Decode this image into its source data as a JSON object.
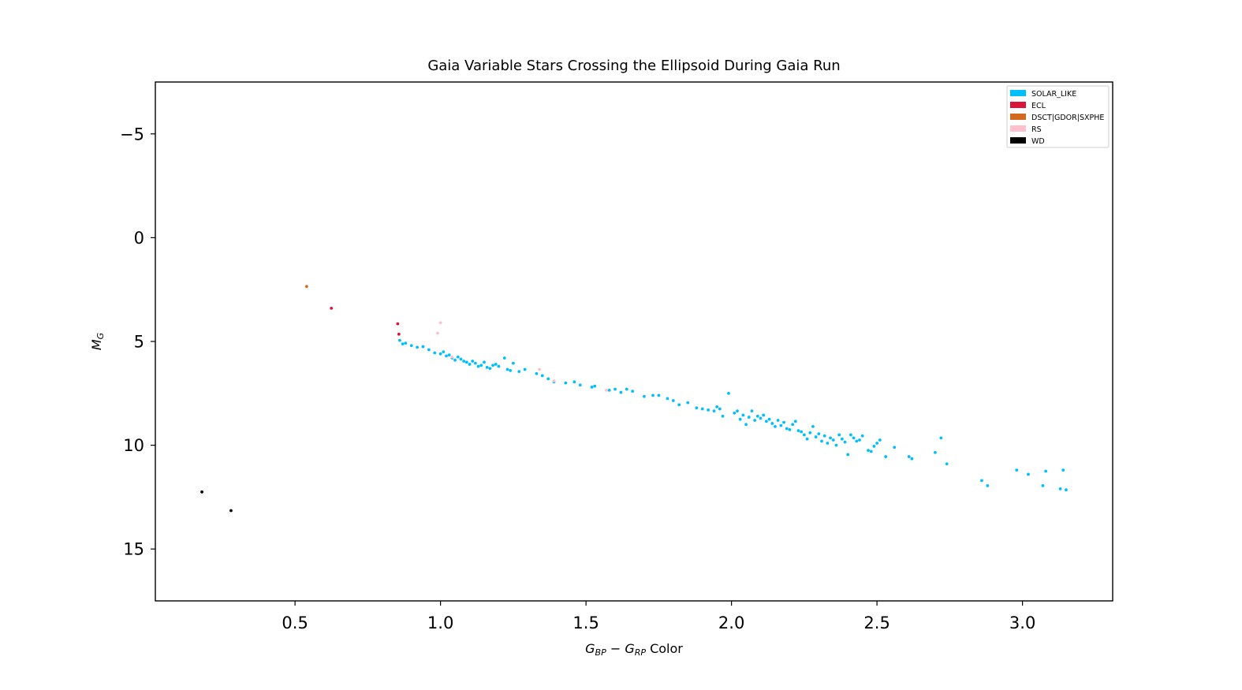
{
  "chart_data": {
    "type": "scatter",
    "title": "Gaia Variable Stars Crossing the Ellipsoid During Gaia Run",
    "xlabel": {
      "main_1": "G",
      "sub_1": "BP",
      "op": " − ",
      "main_2": "G",
      "sub_2": "RP",
      "suffix": " Color"
    },
    "ylabel": {
      "main": "M",
      "sub": "G"
    },
    "xlim": [
      0.02,
      3.31
    ],
    "ylim": [
      17.5,
      -7.5
    ],
    "y_inverted": true,
    "x_ticks": [
      0.5,
      1.0,
      1.5,
      2.0,
      2.5,
      3.0
    ],
    "x_tick_labels": [
      "0.5",
      "1.0",
      "1.5",
      "2.0",
      "2.5",
      "3.0"
    ],
    "y_ticks": [
      -5,
      0,
      5,
      10,
      15
    ],
    "y_tick_labels": [
      "−5",
      "0",
      "5",
      "10",
      "15"
    ],
    "grid": false,
    "legend_position": "top-right",
    "series": [
      {
        "name": "SOLAR_LIKE",
        "color": "#00BFFF",
        "points": [
          [
            0.86,
            4.95
          ],
          [
            0.87,
            5.12
          ],
          [
            0.88,
            5.08
          ],
          [
            0.9,
            5.2
          ],
          [
            0.92,
            5.28
          ],
          [
            0.94,
            5.25
          ],
          [
            0.96,
            5.4
          ],
          [
            0.98,
            5.55
          ],
          [
            1.0,
            5.6
          ],
          [
            1.01,
            5.5
          ],
          [
            1.02,
            5.7
          ],
          [
            1.03,
            5.65
          ],
          [
            1.04,
            5.8
          ],
          [
            1.05,
            5.9
          ],
          [
            1.06,
            5.75
          ],
          [
            1.07,
            5.85
          ],
          [
            1.08,
            5.95
          ],
          [
            1.09,
            6.0
          ],
          [
            1.1,
            6.1
          ],
          [
            1.11,
            5.95
          ],
          [
            1.12,
            6.05
          ],
          [
            1.13,
            6.2
          ],
          [
            1.14,
            6.15
          ],
          [
            1.15,
            6.0
          ],
          [
            1.16,
            6.25
          ],
          [
            1.17,
            6.3
          ],
          [
            1.18,
            6.15
          ],
          [
            1.19,
            6.1
          ],
          [
            1.2,
            6.2
          ],
          [
            1.22,
            5.8
          ],
          [
            1.23,
            6.35
          ],
          [
            1.24,
            6.4
          ],
          [
            1.25,
            6.05
          ],
          [
            1.27,
            6.45
          ],
          [
            1.29,
            6.35
          ],
          [
            1.33,
            6.55
          ],
          [
            1.35,
            6.65
          ],
          [
            1.37,
            6.8
          ],
          [
            1.39,
            6.95
          ],
          [
            1.43,
            7.0
          ],
          [
            1.46,
            6.95
          ],
          [
            1.48,
            7.1
          ],
          [
            1.52,
            7.2
          ],
          [
            1.53,
            7.15
          ],
          [
            1.58,
            7.35
          ],
          [
            1.6,
            7.3
          ],
          [
            1.62,
            7.45
          ],
          [
            1.64,
            7.3
          ],
          [
            1.66,
            7.4
          ],
          [
            1.7,
            7.65
          ],
          [
            1.73,
            7.6
          ],
          [
            1.75,
            7.6
          ],
          [
            1.78,
            7.75
          ],
          [
            1.8,
            7.85
          ],
          [
            1.82,
            8.05
          ],
          [
            1.85,
            7.95
          ],
          [
            1.88,
            8.2
          ],
          [
            1.9,
            8.25
          ],
          [
            1.92,
            8.3
          ],
          [
            1.94,
            8.35
          ],
          [
            1.95,
            8.15
          ],
          [
            1.96,
            8.25
          ],
          [
            1.97,
            8.6
          ],
          [
            1.99,
            7.5
          ],
          [
            2.01,
            8.45
          ],
          [
            2.02,
            8.35
          ],
          [
            2.03,
            8.75
          ],
          [
            2.04,
            8.55
          ],
          [
            2.05,
            9.0
          ],
          [
            2.06,
            8.65
          ],
          [
            2.07,
            8.35
          ],
          [
            2.08,
            8.8
          ],
          [
            2.09,
            8.6
          ],
          [
            2.1,
            8.7
          ],
          [
            2.11,
            8.55
          ],
          [
            2.12,
            8.85
          ],
          [
            2.13,
            8.75
          ],
          [
            2.14,
            8.95
          ],
          [
            2.15,
            9.1
          ],
          [
            2.16,
            8.8
          ],
          [
            2.17,
            9.05
          ],
          [
            2.18,
            8.9
          ],
          [
            2.19,
            9.2
          ],
          [
            2.2,
            9.25
          ],
          [
            2.21,
            9.0
          ],
          [
            2.22,
            8.85
          ],
          [
            2.23,
            9.3
          ],
          [
            2.24,
            9.35
          ],
          [
            2.25,
            9.5
          ],
          [
            2.26,
            9.7
          ],
          [
            2.27,
            9.4
          ],
          [
            2.28,
            9.1
          ],
          [
            2.29,
            9.6
          ],
          [
            2.3,
            9.45
          ],
          [
            2.31,
            9.8
          ],
          [
            2.32,
            9.55
          ],
          [
            2.33,
            9.9
          ],
          [
            2.34,
            9.65
          ],
          [
            2.35,
            9.75
          ],
          [
            2.36,
            10.0
          ],
          [
            2.37,
            9.5
          ],
          [
            2.38,
            9.7
          ],
          [
            2.39,
            9.85
          ],
          [
            2.4,
            10.45
          ],
          [
            2.41,
            9.5
          ],
          [
            2.42,
            9.65
          ],
          [
            2.43,
            9.8
          ],
          [
            2.44,
            9.75
          ],
          [
            2.45,
            9.55
          ],
          [
            2.47,
            10.25
          ],
          [
            2.48,
            10.3
          ],
          [
            2.49,
            10.05
          ],
          [
            2.5,
            9.9
          ],
          [
            2.51,
            9.75
          ],
          [
            2.53,
            10.55
          ],
          [
            2.56,
            10.1
          ],
          [
            2.61,
            10.55
          ],
          [
            2.62,
            10.65
          ],
          [
            2.7,
            10.35
          ],
          [
            2.72,
            9.65
          ],
          [
            2.74,
            10.9
          ],
          [
            2.86,
            11.7
          ],
          [
            2.88,
            11.95
          ],
          [
            2.98,
            11.2
          ],
          [
            3.02,
            11.4
          ],
          [
            3.07,
            11.95
          ],
          [
            3.08,
            11.25
          ],
          [
            3.13,
            12.1
          ],
          [
            3.14,
            11.2
          ],
          [
            3.15,
            12.15
          ]
        ]
      },
      {
        "name": "ECL",
        "color": "#DC143C",
        "points": [
          [
            0.625,
            3.4
          ],
          [
            0.853,
            4.15
          ],
          [
            0.857,
            4.65
          ]
        ]
      },
      {
        "name": "DSCT|GDOR|SXPHE",
        "color": "#D2691E",
        "points": [
          [
            0.54,
            2.35
          ]
        ]
      },
      {
        "name": "RS",
        "color": "#FFC0CB",
        "points": [
          [
            0.99,
            4.6
          ],
          [
            1.0,
            4.1
          ],
          [
            1.34,
            6.35
          ],
          [
            1.39,
            6.9
          ],
          [
            1.57,
            7.35
          ],
          [
            1.04,
            5.75
          ]
        ]
      },
      {
        "name": "WD",
        "color": "#000000",
        "points": [
          [
            0.18,
            12.25
          ],
          [
            0.28,
            13.15
          ]
        ]
      }
    ]
  }
}
